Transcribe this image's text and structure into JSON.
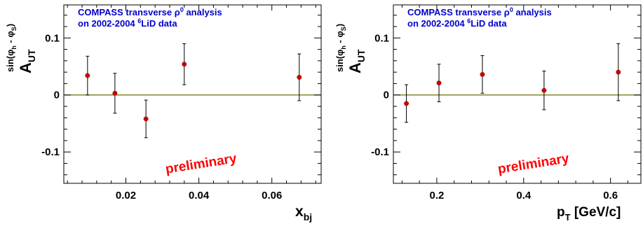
{
  "chart_data": [
    {
      "type": "scatter",
      "title_line1_prefix": "COMPASS transverse ",
      "title_line1_greek": "ρ",
      "title_line1_sup": "0",
      "title_line1_suffix": " analysis",
      "title_line2_prefix": "on 2002-2004 ",
      "title_line2_sup": "6",
      "title_line2_suffix": "LiD data",
      "annotation": "preliminary",
      "ylabel_main": "A",
      "ylabel_sub": "UT",
      "ylabel_sup": "sin(φ_h - φ_S)",
      "ylabel_sup_parts": {
        "open": "sin(",
        "phi1": "φ",
        "sub1": "h",
        "mid": " - ",
        "phi2": "φ",
        "sub2": "S",
        "close": ")"
      },
      "xlabel_main": "x",
      "xlabel_sub": "bj",
      "xlim": [
        0.003,
        0.0735
      ],
      "ylim": [
        -0.155,
        0.158
      ],
      "xticks": [
        0.02,
        0.04,
        0.06
      ],
      "xtick_labels": [
        "0.02",
        "0.04",
        "0.06"
      ],
      "yticks": [
        -0.1,
        0,
        0.1
      ],
      "ytick_labels": [
        "-0.1",
        "0",
        "0.1"
      ],
      "grid": false,
      "reference_line": 0,
      "series": [
        {
          "x": [
            0.0095,
            0.017,
            0.0255,
            0.036,
            0.0675
          ],
          "y": [
            0.034,
            0.003,
            -0.042,
            0.054,
            0.031
          ],
          "yerr": [
            0.034,
            0.035,
            0.033,
            0.036,
            0.041
          ],
          "color": "#cc0000"
        }
      ]
    },
    {
      "type": "scatter",
      "title_line1_prefix": "COMPASS transverse ",
      "title_line1_greek": "ρ",
      "title_line1_sup": "0",
      "title_line1_suffix": " analysis",
      "title_line2_prefix": "on 2002-2004 ",
      "title_line2_sup": "6",
      "title_line2_suffix": "LiD data",
      "annotation": "preliminary",
      "ylabel_main": "A",
      "ylabel_sub": "UT",
      "ylabel_sup": "sin(φ_h - φ_S)",
      "ylabel_sup_parts": {
        "open": "sin(",
        "phi1": "φ",
        "sub1": "h",
        "mid": " - ",
        "phi2": "φ",
        "sub2": "S",
        "close": ")"
      },
      "xlabel_main": "p",
      "xlabel_sub": "T",
      "xlabel_suffix": " [GeV/c]",
      "xlim": [
        0.1,
        0.67
      ],
      "ylim": [
        -0.155,
        0.158
      ],
      "xticks": [
        0.2,
        0.4,
        0.6
      ],
      "xtick_labels": [
        "0.2",
        "0.4",
        "0.6"
      ],
      "yticks": [
        -0.1,
        0,
        0.1
      ],
      "ytick_labels": [
        "-0.1",
        "0",
        "0.1"
      ],
      "grid": false,
      "reference_line": 0,
      "series": [
        {
          "x": [
            0.13,
            0.205,
            0.305,
            0.447,
            0.618
          ],
          "y": [
            -0.015,
            0.021,
            0.036,
            0.008,
            0.04
          ],
          "yerr": [
            0.033,
            0.033,
            0.033,
            0.034,
            0.05
          ],
          "color": "#cc0000"
        }
      ]
    }
  ]
}
